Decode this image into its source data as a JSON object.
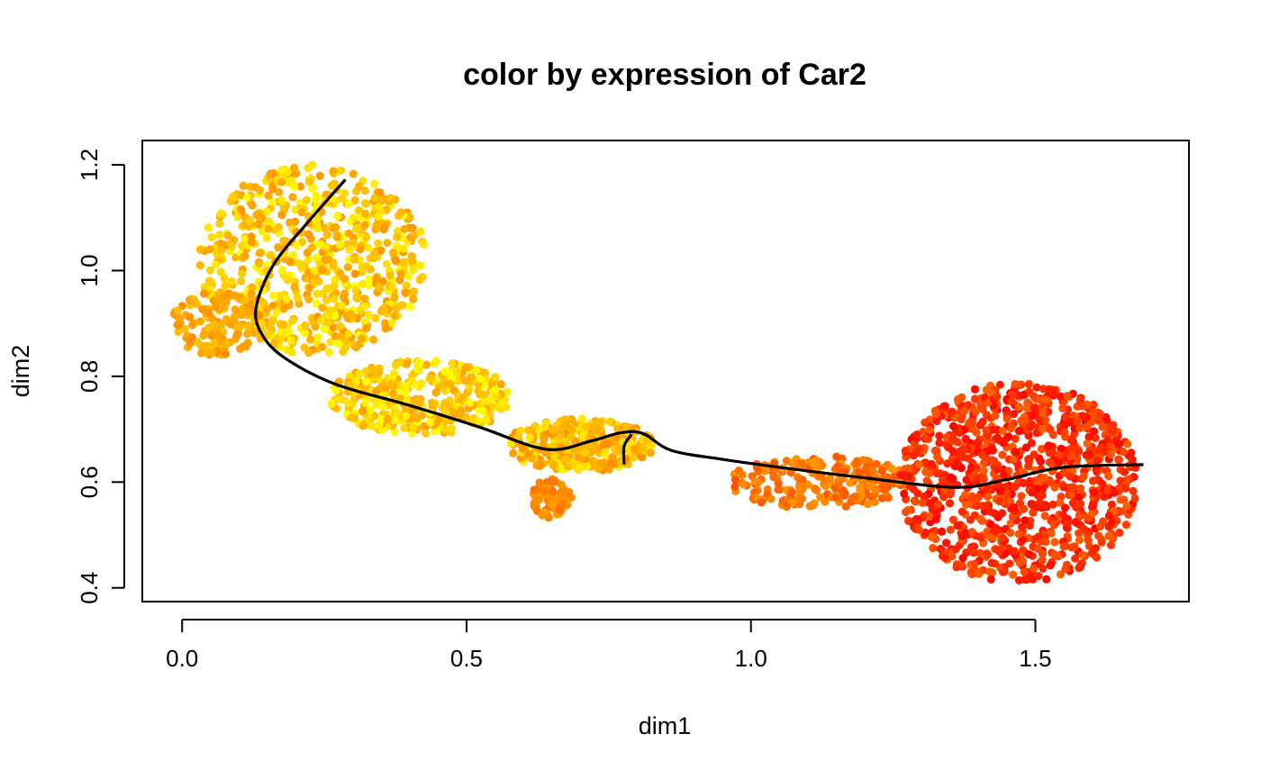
{
  "chart_data": {
    "type": "scatter",
    "title": "color by expression of Car2",
    "xlabel": "dim1",
    "ylabel": "dim2",
    "xlim": [
      -0.07,
      1.77
    ],
    "ylim": [
      0.374,
      1.246
    ],
    "x_ticks": [
      {
        "value": 0.0,
        "label": "0.0"
      },
      {
        "value": 0.5,
        "label": "0.5"
      },
      {
        "value": 1.0,
        "label": "1.0"
      },
      {
        "value": 1.5,
        "label": "1.5"
      }
    ],
    "y_ticks": [
      {
        "value": 0.4,
        "label": "0.4"
      },
      {
        "value": 0.6,
        "label": "0.6"
      },
      {
        "value": 0.8,
        "label": "0.8"
      },
      {
        "value": 1.0,
        "label": "1.0"
      },
      {
        "value": 1.2,
        "label": "1.2"
      }
    ],
    "grid": false,
    "legend": "none",
    "color_scale": [
      "#FF0000",
      "#FF4500",
      "#FF8C00",
      "#FFC000",
      "#FFFF00"
    ],
    "clusters": [
      {
        "name": "top-left lobe",
        "cx": 0.23,
        "cy": 1.02,
        "rx": 0.2,
        "ry": 0.18,
        "n": 700,
        "expr": [
          0.55,
          1.0
        ]
      },
      {
        "name": "left bulge",
        "cx": 0.06,
        "cy": 0.9,
        "rx": 0.08,
        "ry": 0.06,
        "n": 120,
        "expr": [
          0.5,
          0.75
        ]
      },
      {
        "name": "stem",
        "cx": 0.42,
        "cy": 0.76,
        "rx": 0.16,
        "ry": 0.07,
        "n": 360,
        "expr": [
          0.6,
          1.0
        ]
      },
      {
        "name": "mid band",
        "cx": 0.7,
        "cy": 0.67,
        "rx": 0.13,
        "ry": 0.05,
        "n": 320,
        "expr": [
          0.5,
          0.95
        ]
      },
      {
        "name": "mid lower blob",
        "cx": 0.65,
        "cy": 0.57,
        "rx": 0.035,
        "ry": 0.04,
        "n": 70,
        "expr": [
          0.4,
          0.6
        ]
      },
      {
        "name": "bridge",
        "cx": 1.12,
        "cy": 0.6,
        "rx": 0.16,
        "ry": 0.05,
        "n": 230,
        "expr": [
          0.3,
          0.55
        ]
      },
      {
        "name": "right lobe",
        "cx": 1.47,
        "cy": 0.6,
        "rx": 0.21,
        "ry": 0.19,
        "n": 980,
        "expr": [
          0.0,
          0.35
        ]
      }
    ],
    "trajectory": [
      {
        "x": 0.287,
        "y": 1.172
      },
      {
        "x": 0.22,
        "y": 1.09
      },
      {
        "x": 0.16,
        "y": 1.01
      },
      {
        "x": 0.13,
        "y": 0.93
      },
      {
        "x": 0.14,
        "y": 0.88
      },
      {
        "x": 0.18,
        "y": 0.835
      },
      {
        "x": 0.27,
        "y": 0.785
      },
      {
        "x": 0.4,
        "y": 0.745
      },
      {
        "x": 0.52,
        "y": 0.705
      },
      {
        "x": 0.64,
        "y": 0.662
      },
      {
        "x": 0.72,
        "y": 0.678
      },
      {
        "x": 0.77,
        "y": 0.693
      },
      {
        "x": 0.81,
        "y": 0.692
      },
      {
        "x": 0.86,
        "y": 0.66
      },
      {
        "x": 0.95,
        "y": 0.643
      },
      {
        "x": 1.05,
        "y": 0.628
      },
      {
        "x": 1.2,
        "y": 0.608
      },
      {
        "x": 1.36,
        "y": 0.59
      },
      {
        "x": 1.45,
        "y": 0.605
      },
      {
        "x": 1.55,
        "y": 0.628
      },
      {
        "x": 1.69,
        "y": 0.633
      }
    ],
    "trajectory_branch": [
      {
        "x": 0.777,
        "y": 0.633
      },
      {
        "x": 0.777,
        "y": 0.668
      },
      {
        "x": 0.79,
        "y": 0.69
      }
    ]
  }
}
